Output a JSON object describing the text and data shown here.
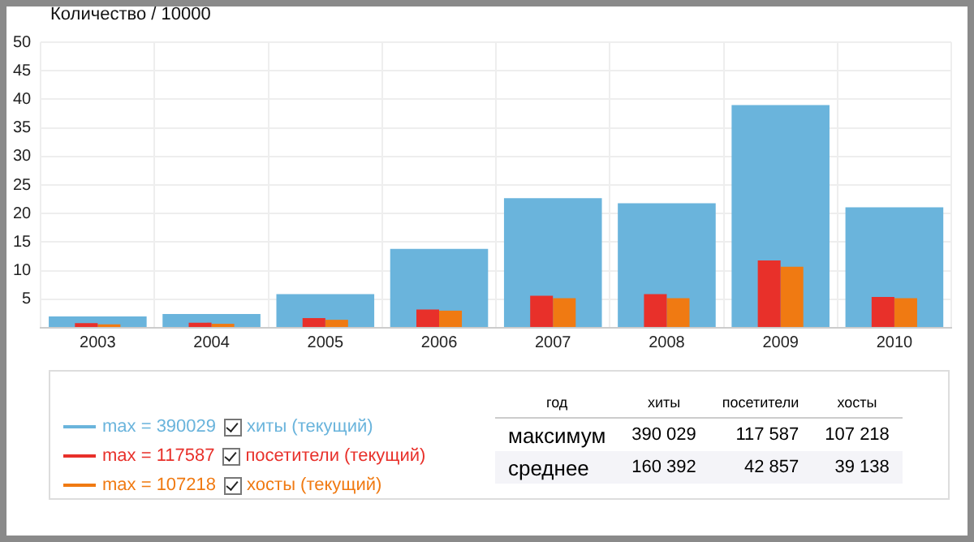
{
  "chart_data": {
    "type": "bar",
    "ylabel": "Количество / 10000",
    "categories": [
      "2003",
      "2004",
      "2005",
      "2006",
      "2007",
      "2008",
      "2009",
      "2010"
    ],
    "series": [
      {
        "name": "хиты (текущий)",
        "color": "#6ab4dc",
        "values": [
          2.0,
          2.4,
          5.9,
          13.8,
          22.7,
          21.8,
          39.0,
          21.1
        ]
      },
      {
        "name": "посетители (текущий)",
        "color": "#e8302a",
        "values": [
          0.8,
          0.9,
          1.7,
          3.2,
          5.6,
          5.9,
          11.8,
          5.4
        ]
      },
      {
        "name": "хосты (текущий)",
        "color": "#f07a12",
        "values": [
          0.6,
          0.7,
          1.4,
          3.0,
          5.2,
          5.2,
          10.7,
          5.2
        ]
      }
    ],
    "ylim": [
      0,
      50
    ],
    "yticks": [
      {
        "value": 0,
        "label": null
      },
      5,
      10,
      15,
      20,
      25,
      30,
      35,
      40,
      45,
      50
    ],
    "grid": true,
    "legend": "bottom",
    "annotations": [
      "max = 390029",
      "max = 117587",
      "max = 107218",
      "год",
      "хиты",
      "посетители",
      "хосты",
      "максимум",
      "390 029",
      "117 587",
      "107 218",
      "среднее",
      "160 392",
      "42 857",
      "39 138"
    ]
  }
}
